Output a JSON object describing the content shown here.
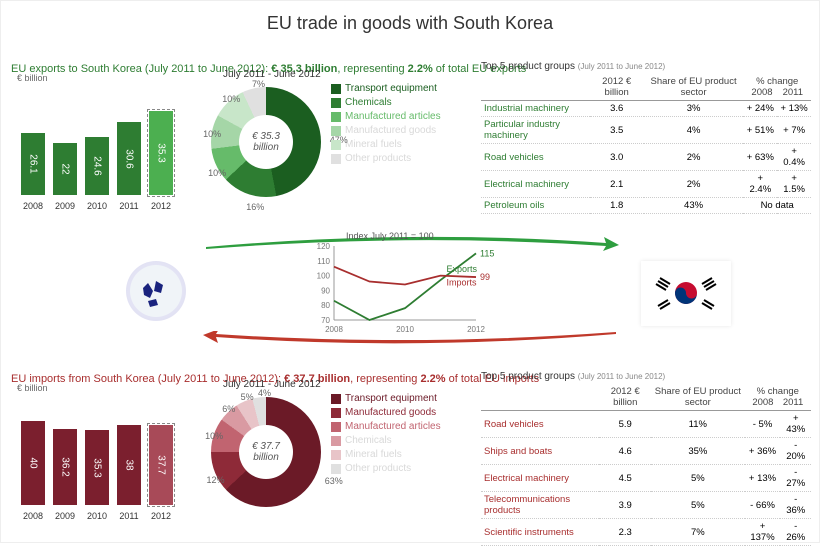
{
  "title": "EU trade in goods with South Korea",
  "exports": {
    "header_prefix": "EU exports to South Korea (July 2011 to June 2012): ",
    "amount": "€ 35.3 billion",
    "middle": ", representing ",
    "share": "2.2%",
    "suffix": " of total EU exports",
    "axis_label": "€ billion",
    "bars": {
      "type": "bar",
      "years": [
        "2008",
        "2009",
        "2010",
        "2011",
        "2012"
      ],
      "values": [
        26.1,
        22,
        24.6,
        30.6,
        35.3
      ],
      "max": 40,
      "color": "#2e7d32",
      "last_color": "#4caf50"
    },
    "donut": {
      "title": "July 2011 - June 2012",
      "center": "€ 35.3 billion",
      "slices": [
        {
          "label": "Transport equipment",
          "pct": 47,
          "color": "#1b5e20"
        },
        {
          "label": "Chemicals",
          "pct": 16,
          "color": "#2e7d32"
        },
        {
          "label": "Manufactured articles",
          "pct": 10,
          "color": "#66bb6a"
        },
        {
          "label": "Manufactured goods",
          "pct": 10,
          "color": "#a5d6a7"
        },
        {
          "label": "Mineral fuels",
          "pct": 10,
          "color": "#c8e6c9"
        },
        {
          "label": "Other products",
          "pct": 7,
          "color": "#e0e0e0"
        }
      ]
    },
    "table": {
      "title": "Top 5 product groups",
      "subtitle": "(July 2011 to June 2012)",
      "cols": [
        "",
        "2012 € billion",
        "Share of EU product sector",
        "% change 2008",
        "% change 2011"
      ],
      "rows": [
        [
          "Industrial machinery",
          "3.6",
          "3%",
          "+ 24%",
          "+ 13%"
        ],
        [
          "Particular industry machinery",
          "3.5",
          "4%",
          "+ 51%",
          "+ 7%"
        ],
        [
          "Road vehicles",
          "3.0",
          "2%",
          "+ 63%",
          "+ 0.4%"
        ],
        [
          "Electrical machinery",
          "2.1",
          "2%",
          "+ 2.4%",
          "+ 1.5%"
        ],
        [
          "Petroleum oils",
          "1.8",
          "43%",
          "No data",
          ""
        ]
      ]
    }
  },
  "imports": {
    "header_prefix": "EU imports from South Korea (July 2011 to June 2012): ",
    "amount": "€ 37.7 billion",
    "middle": ", representing ",
    "share": "2.2%",
    "suffix": " of total EU imports",
    "axis_label": "€ billion",
    "bars": {
      "type": "bar",
      "years": [
        "2008",
        "2009",
        "2010",
        "2011",
        "2012"
      ],
      "values": [
        40,
        36.2,
        35.3,
        38,
        37.7
      ],
      "max": 45,
      "color": "#7b1f2e",
      "last_color": "#a84a58"
    },
    "donut": {
      "title": "July 2011 - June 2012",
      "center": "€ 37.7 billion",
      "slices": [
        {
          "label": "Transport equipment",
          "pct": 63,
          "color": "#6b1a27"
        },
        {
          "label": "Manufactured goods",
          "pct": 12,
          "color": "#8e2a38"
        },
        {
          "label": "Manufactured articles",
          "pct": 10,
          "color": "#c16470"
        },
        {
          "label": "Chemicals",
          "pct": 6,
          "color": "#d99aa2"
        },
        {
          "label": "Mineral fuels",
          "pct": 5,
          "color": "#e8c4c8"
        },
        {
          "label": "Other products",
          "pct": 4,
          "color": "#e0e0e0"
        }
      ]
    },
    "table": {
      "title": "Top 5 product groups",
      "subtitle": "(July 2011 to June 2012)",
      "cols": [
        "",
        "2012 € billion",
        "Share of EU product sector",
        "% change 2008",
        "% change 2011"
      ],
      "rows": [
        [
          "Road vehicles",
          "5.9",
          "11%",
          "- 5%",
          "+ 43%"
        ],
        [
          "Ships and boats",
          "4.6",
          "35%",
          "+ 36%",
          "- 20%"
        ],
        [
          "Electrical machinery",
          "4.5",
          "5%",
          "+ 13%",
          "- 27%"
        ],
        [
          "Telecommunications products",
          "3.9",
          "5%",
          "- 66%",
          "- 36%"
        ],
        [
          "Scientific instruments",
          "2.3",
          "7%",
          "+ 137%",
          "- 26%"
        ]
      ]
    }
  },
  "index_chart": {
    "type": "line",
    "title": "Index July 2011 = 100",
    "x_years": [
      "2008",
      "2010",
      "2012"
    ],
    "y_ticks": [
      70,
      80,
      90,
      100,
      110,
      120
    ],
    "ylim": [
      70,
      120
    ],
    "series": [
      {
        "name": "Exports",
        "color": "#2e7d32",
        "end_value": 115,
        "points": [
          [
            2008,
            83
          ],
          [
            2009,
            70
          ],
          [
            2010,
            78
          ],
          [
            2011,
            97
          ],
          [
            2012,
            115
          ]
        ]
      },
      {
        "name": "Imports",
        "color": "#a82e2e",
        "end_value": 99,
        "points": [
          [
            2008,
            106
          ],
          [
            2009,
            96
          ],
          [
            2010,
            94
          ],
          [
            2011,
            100
          ],
          [
            2012,
            99
          ]
        ]
      }
    ],
    "grid_color": "#ccc",
    "background": "#fff"
  },
  "arrows": {
    "green": "#2e9e3f",
    "red": "#c0392b"
  },
  "flags": {
    "eu": "EU",
    "kr": "KR"
  }
}
